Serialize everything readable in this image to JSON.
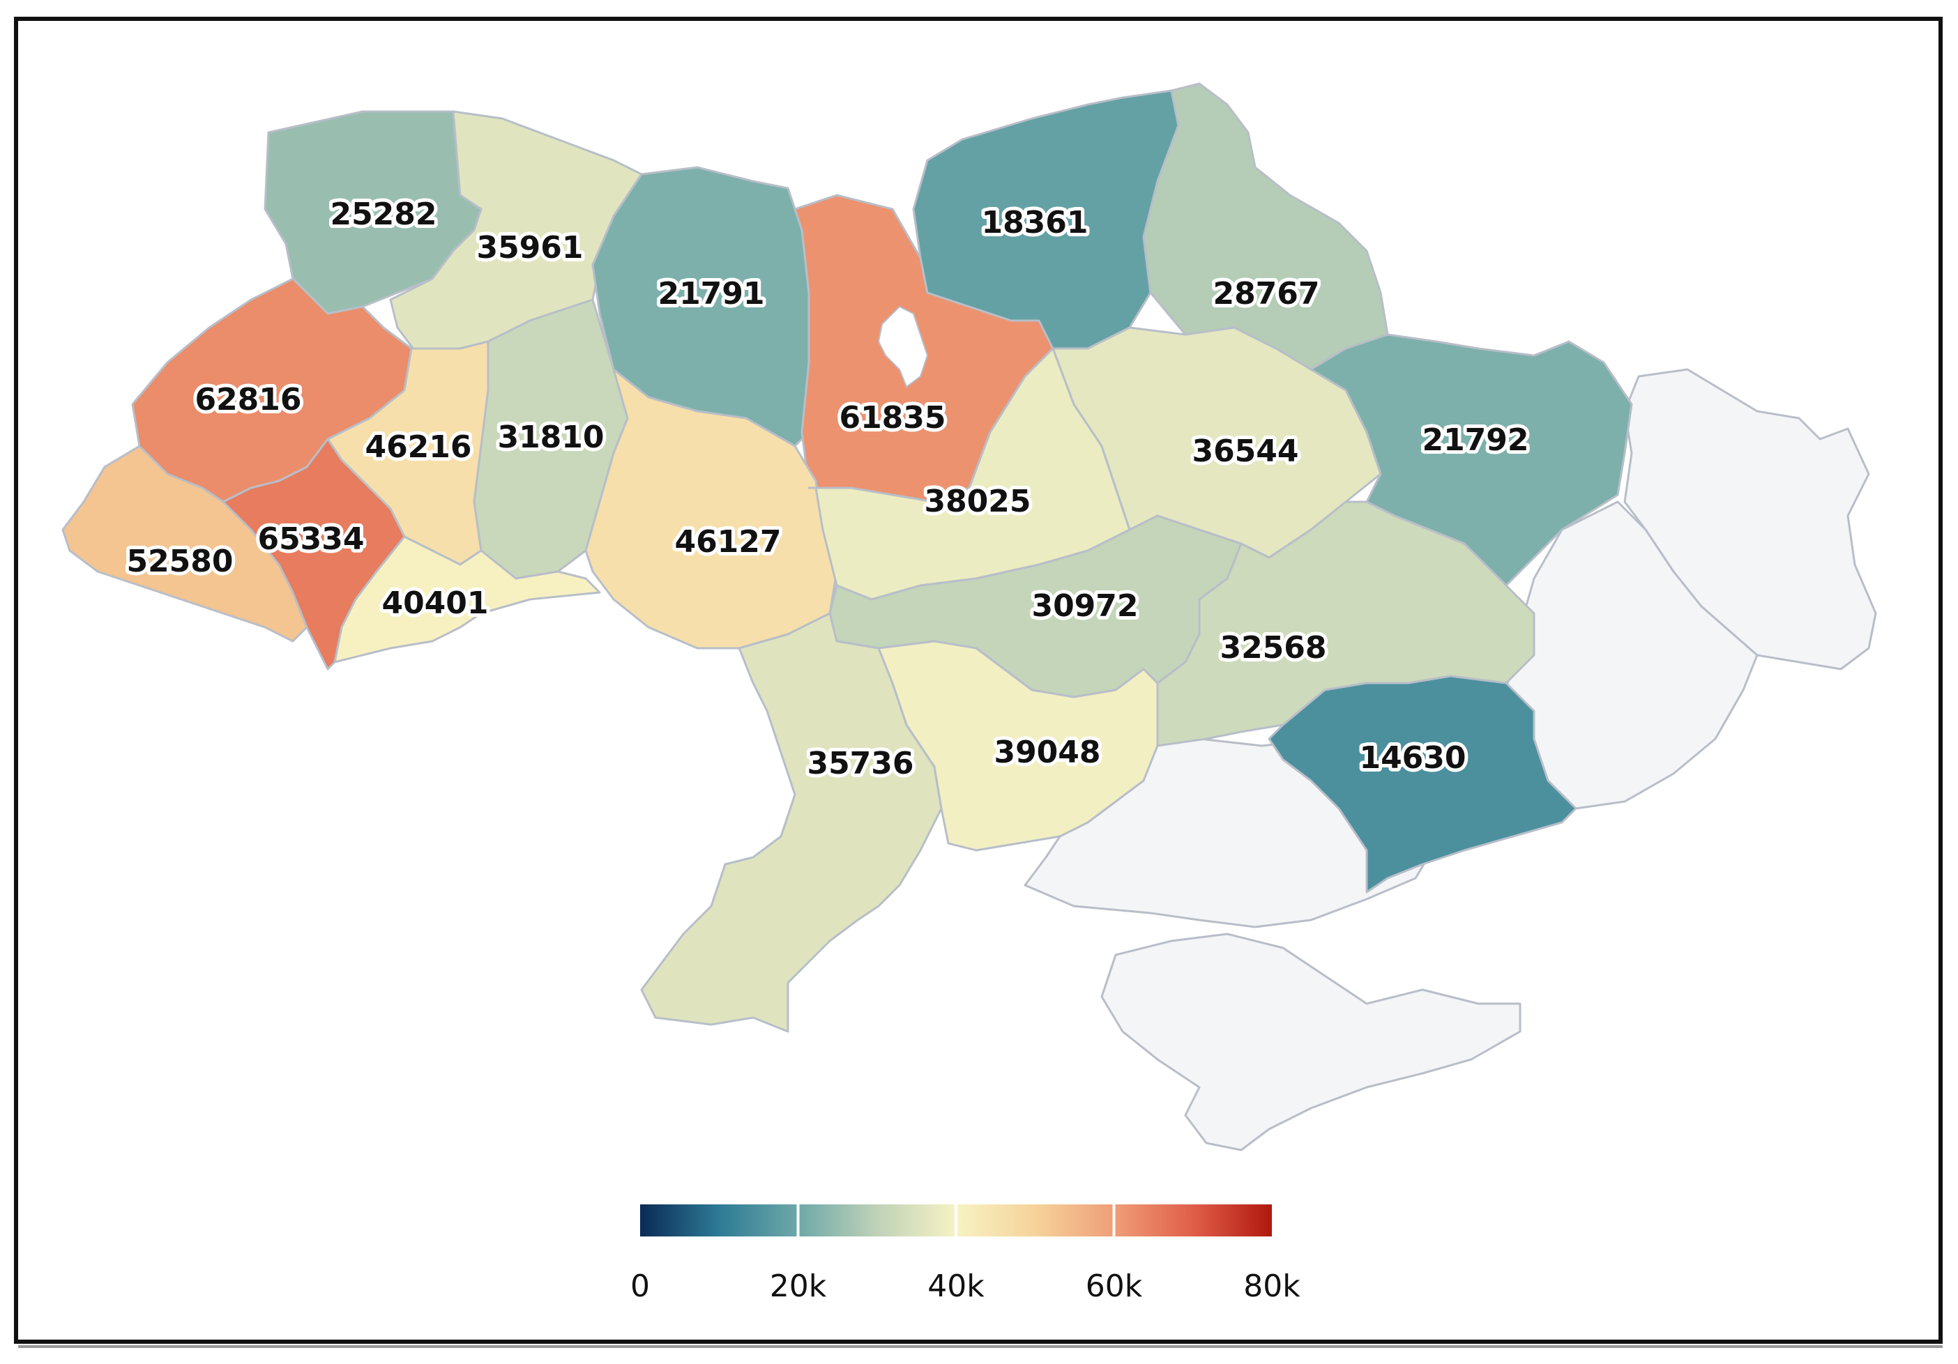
{
  "map": {
    "regions": [
      {
        "id": "volyn",
        "value": 25282,
        "label": "25282"
      },
      {
        "id": "rivne",
        "value": 35961,
        "label": "35961"
      },
      {
        "id": "zhytomyr",
        "value": 21791,
        "label": "21791"
      },
      {
        "id": "kyiv",
        "value": 61835,
        "label": "61835"
      },
      {
        "id": "chernihiv",
        "value": 18361,
        "label": "18361"
      },
      {
        "id": "sumy",
        "value": 28767,
        "label": "28767"
      },
      {
        "id": "lviv",
        "value": 62816,
        "label": "62816"
      },
      {
        "id": "ternopil",
        "value": 46216,
        "label": "46216"
      },
      {
        "id": "khmelnytskyi",
        "value": 31810,
        "label": "31810"
      },
      {
        "id": "vinnytsia",
        "value": 46127,
        "label": "46127"
      },
      {
        "id": "cherkasy",
        "value": 38025,
        "label": "38025"
      },
      {
        "id": "poltava",
        "value": 36544,
        "label": "36544"
      },
      {
        "id": "kharkiv",
        "value": 21792,
        "label": "21792"
      },
      {
        "id": "zakarpattia",
        "value": 52580,
        "label": "52580"
      },
      {
        "id": "ivano-frankivsk",
        "value": 65334,
        "label": "65334"
      },
      {
        "id": "chernivtsi",
        "value": 40401,
        "label": "40401"
      },
      {
        "id": "kirovohrad",
        "value": 30972,
        "label": "30972"
      },
      {
        "id": "dnipropetrovsk",
        "value": 32568,
        "label": "32568"
      },
      {
        "id": "odesa",
        "value": 35736,
        "label": "35736"
      },
      {
        "id": "mykolaiv",
        "value": 39048,
        "label": "39048"
      },
      {
        "id": "zaporizhzhia",
        "value": 14630,
        "label": "14630"
      },
      {
        "id": "luhansk",
        "value": null,
        "label": ""
      },
      {
        "id": "donetsk",
        "value": null,
        "label": ""
      },
      {
        "id": "kherson",
        "value": null,
        "label": ""
      },
      {
        "id": "crimea",
        "value": null,
        "label": ""
      }
    ],
    "no_data_color": "#f4f5f7",
    "border_color": "#b8bec8"
  },
  "colorbar": {
    "min": 0,
    "max": 80000,
    "stops": [
      {
        "t": 0.0,
        "color": "#0a2a55"
      },
      {
        "t": 0.125,
        "color": "#2e7b96"
      },
      {
        "t": 0.25,
        "color": "#6ea8a8"
      },
      {
        "t": 0.375,
        "color": "#bfd2b8"
      },
      {
        "t": 0.5,
        "color": "#f7f2c4"
      },
      {
        "t": 0.625,
        "color": "#f6d39a"
      },
      {
        "t": 0.75,
        "color": "#ef9e78"
      },
      {
        "t": 0.875,
        "color": "#e05e48"
      },
      {
        "t": 1.0,
        "color": "#b0180f"
      }
    ],
    "ticks": [
      {
        "value": 0,
        "label": "0"
      },
      {
        "value": 20000,
        "label": "20k"
      },
      {
        "value": 40000,
        "label": "40k"
      },
      {
        "value": 60000,
        "label": "60k"
      },
      {
        "value": 80000,
        "label": "80k"
      }
    ]
  }
}
